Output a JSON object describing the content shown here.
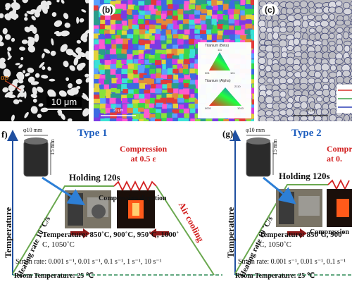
{
  "micrographs": {
    "a": {
      "phase_label": "αp",
      "scale_bar": "10 μm"
    },
    "b": {
      "label": "(b)",
      "legend_beta_title": "Titanium (Beta)",
      "legend_alpha_title": "Titanium (Alpha)",
      "legend_beta_ticks": [
        "111",
        "001",
        "101"
      ],
      "legend_alpha_ticks": [
        "0001",
        "2110",
        "1010"
      ],
      "scale_bar": "20 μm"
    },
    "c": {
      "label": "(c)",
      "scale_bar": "20 μm",
      "line_colors": [
        "#d9302c",
        "#3aa34a",
        "#2c3fb5"
      ]
    }
  },
  "schematic_f": {
    "label": "f)",
    "title": "Type 1",
    "specimen_diameter": "φ10 mm",
    "specimen_height": "15 mm",
    "heating_rate": "Heating rate 10 ˚C/s",
    "holding": "Holding 120s",
    "compression_line1": "Compression",
    "compression_line2": "at 0.5 ε",
    "air_cooling": "Air cooling",
    "compression_direction": "Compression direction",
    "y_axis": "Temperature",
    "temperature_line1": "Temperature: 850˚C, 900˚C, 950˚C, 1000˚",
    "temperature_line2": "C, 1050˚C",
    "strain_rate": "Strain rate: 0.001 s⁻¹, 0.01 s⁻¹, 0.1 s⁻¹, 1 s⁻¹, 10 s⁻¹",
    "room_temperature": "Room Temperature: 25 ℃"
  },
  "schematic_g": {
    "label": "(g)",
    "title": "Type 2",
    "specimen_diameter": "φ10 mm",
    "specimen_height": "15 mm",
    "heating_rate": "Heating rate 10 ˚C/s",
    "holding": "Holding 120s",
    "compression_line1": "Compre",
    "compression_line2": "at 0.",
    "compression_direction": "Compression",
    "y_axis": "Temperature",
    "temperature_line1": "Temperature: 850˚C, 900˚",
    "temperature_line2": "C, 1050˚C",
    "strain_rate": "Strain rate: 0.001 s⁻¹, 0.01 s⁻¹, 0.1 s⁻¹",
    "room_temperature": "Room Temperature: 25 ℃"
  },
  "colors": {
    "title_blue": "#1f5fbf",
    "compression_red": "#d22020",
    "path_green": "#6aa84f",
    "axis_blue": "#1f4fa0",
    "arrow_dark_red": "#8b1a1a",
    "dashed_green": "#2e8b57"
  }
}
